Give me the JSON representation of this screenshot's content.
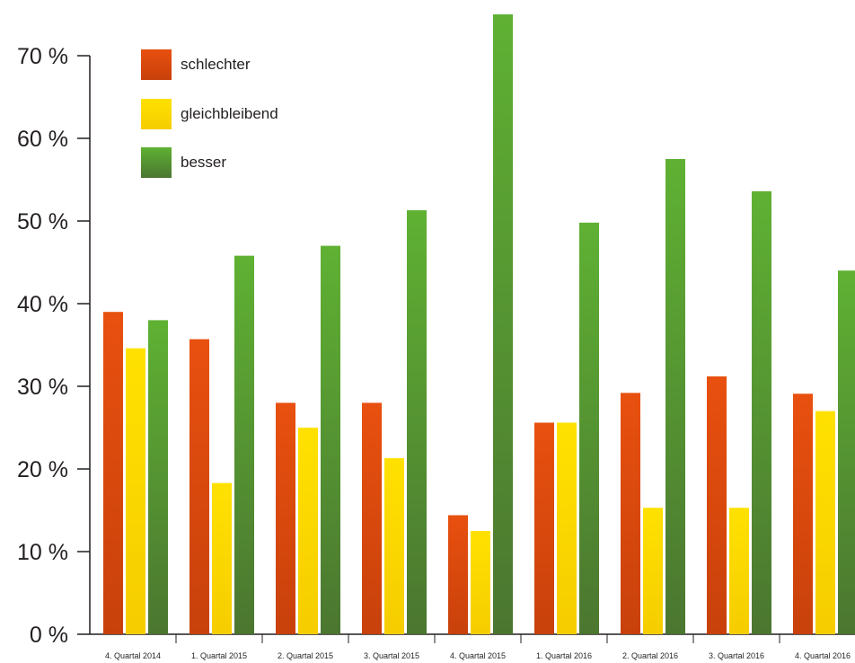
{
  "chart_data": {
    "type": "bar",
    "categories": [
      "4. Quartal 2014",
      "1. Quartal 2015",
      "2. Quartal 2015",
      "3. Quartal 2015",
      "4. Quartal 2015",
      "1. Quartal 2016",
      "2. Quartal 2016",
      "3. Quartal 2016",
      "4. Quartal 2016"
    ],
    "series": [
      {
        "name": "schlechter",
        "values": [
          39,
          35.7,
          28,
          28,
          14.4,
          25.6,
          29.2,
          31.2,
          29.1
        ]
      },
      {
        "name": "gleichbleibend",
        "values": [
          34.6,
          18.3,
          25,
          21.3,
          12.5,
          25.6,
          15.3,
          15.3,
          27
        ]
      },
      {
        "name": "besser",
        "values": [
          38,
          45.8,
          47,
          51.3,
          75,
          49.8,
          57.5,
          53.6,
          44
        ]
      }
    ],
    "y_ticks": [
      "0 %",
      "10 %",
      "20 %",
      "30 %",
      "40 %",
      "50 %",
      "60 %",
      "70 %"
    ],
    "ylim": [
      0,
      75
    ],
    "legend_position": "top-left",
    "grid": false,
    "colors": {
      "schlechter": [
        "#e8500f",
        "#c8410b"
      ],
      "gleichbleibend": [
        "#ffe100",
        "#f6cd00"
      ],
      "besser": [
        "#5fb133",
        "#4b7630"
      ]
    }
  }
}
